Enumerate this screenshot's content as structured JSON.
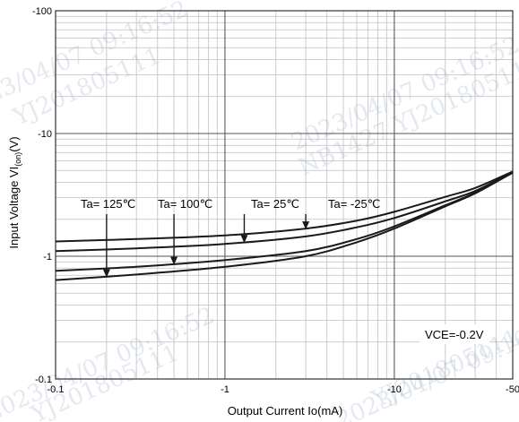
{
  "chart_data": {
    "type": "line",
    "title": "",
    "xlabel": "Output Current Io(mA)",
    "ylabel_main": "Input Voltage VI",
    "ylabel_sub": "(on)",
    "ylabel_unit": "(V)",
    "x_scale": "log",
    "y_scale": "log",
    "x_range": [
      -0.1,
      -50
    ],
    "y_range": [
      -0.1,
      -100
    ],
    "grid": true,
    "x_ticks": [
      {
        "value": -0.1,
        "label": "-0.1"
      },
      {
        "value": -1,
        "label": "-1"
      },
      {
        "value": -10,
        "label": "-10"
      },
      {
        "value": -50,
        "label": "-50"
      }
    ],
    "y_ticks": [
      {
        "value": -0.1,
        "label": "-0.1"
      },
      {
        "value": -1,
        "label": "-1"
      },
      {
        "value": -10,
        "label": "-10"
      },
      {
        "value": -100,
        "label": "-100"
      }
    ],
    "series": [
      {
        "name": "Ta= -25℃",
        "x": [
          -0.1,
          -0.3,
          -1,
          -3,
          -6,
          -10,
          -20,
          -30,
          -50
        ],
        "y": [
          -1.32,
          -1.38,
          -1.48,
          -1.68,
          -1.95,
          -2.3,
          -3.05,
          -3.6,
          -4.9
        ]
      },
      {
        "name": "Ta= 25℃",
        "x": [
          -0.1,
          -0.3,
          -1,
          -3,
          -6,
          -10,
          -20,
          -30,
          -50
        ],
        "y": [
          -1.1,
          -1.16,
          -1.26,
          -1.45,
          -1.72,
          -2.05,
          -2.8,
          -3.4,
          -4.85
        ]
      },
      {
        "name": "Ta= 100℃",
        "x": [
          -0.1,
          -0.3,
          -1,
          -3,
          -6,
          -10,
          -20,
          -30,
          -50
        ],
        "y": [
          -0.76,
          -0.82,
          -0.93,
          -1.1,
          -1.38,
          -1.75,
          -2.6,
          -3.3,
          -4.8
        ]
      },
      {
        "name": "Ta= 125℃",
        "x": [
          -0.1,
          -0.3,
          -1,
          -3,
          -6,
          -10,
          -20,
          -30,
          -50
        ],
        "y": [
          -0.64,
          -0.71,
          -0.82,
          -1.0,
          -1.3,
          -1.68,
          -2.55,
          -3.25,
          -4.8
        ]
      }
    ],
    "annotations": [
      {
        "text": "Ta= 125℃",
        "arrow_x": -0.2,
        "series": 3
      },
      {
        "text": "Ta= 100℃",
        "arrow_x": -0.5,
        "series": 2
      },
      {
        "text": "Ta= 25℃",
        "arrow_x": -1.3,
        "series": 1
      },
      {
        "text": "Ta= -25℃",
        "arrow_x": -3.0,
        "series": 0
      }
    ],
    "condition_label": "VCE=-0.2V"
  },
  "watermarks": [
    "2023/04/07 09:16:52",
    "YJ201805111",
    "2023/04/07 09:16:52",
    "NB1427 YJ201805111"
  ],
  "colors": {
    "line": "#1a1a1a",
    "grid": "#bfbfbf",
    "frame": "#333333",
    "watermark": "#9fb0c8"
  }
}
